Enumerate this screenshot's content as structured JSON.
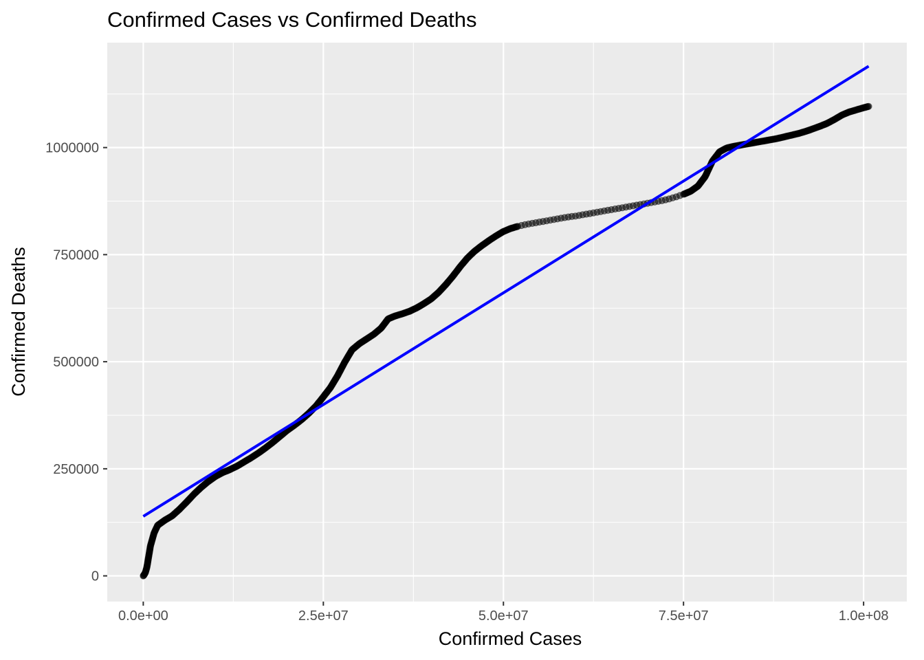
{
  "chart_data": {
    "type": "scatter",
    "title": "Confirmed Cases vs Confirmed Deaths",
    "xlabel": "Confirmed Cases",
    "ylabel": "Confirmed Deaths",
    "xlim": [
      -5000000,
      106000000
    ],
    "ylim": [
      -60000,
      1245000
    ],
    "x_ticks": [
      {
        "value": 0,
        "label": "0.0e+00"
      },
      {
        "value": 25000000,
        "label": "2.5e+07"
      },
      {
        "value": 50000000,
        "label": "5.0e+07"
      },
      {
        "value": 75000000,
        "label": "7.5e+07"
      },
      {
        "value": 100000000,
        "label": "1.0e+08"
      }
    ],
    "y_ticks": [
      {
        "value": 0,
        "label": "0"
      },
      {
        "value": 250000,
        "label": "250000"
      },
      {
        "value": 500000,
        "label": "500000"
      },
      {
        "value": 750000,
        "label": "750000"
      },
      {
        "value": 1000000,
        "label": "1000000"
      }
    ],
    "grid": true,
    "colors": {
      "panel_background": "#ebebeb",
      "grid_line": "#ffffff",
      "points": "#000000",
      "fit_line": "#0000ff"
    },
    "series": [
      {
        "type": "scatter",
        "points": [
          [
            0,
            0
          ],
          [
            100000,
            2000
          ],
          [
            300000,
            8000
          ],
          [
            500000,
            20000
          ],
          [
            700000,
            40000
          ],
          [
            1000000,
            70000
          ],
          [
            1500000,
            100000
          ],
          [
            2000000,
            118000
          ],
          [
            3000000,
            130000
          ],
          [
            4000000,
            140000
          ],
          [
            5000000,
            155000
          ],
          [
            6000000,
            172000
          ],
          [
            7000000,
            190000
          ],
          [
            8000000,
            206000
          ],
          [
            9000000,
            220000
          ],
          [
            10000000,
            232000
          ],
          [
            11000000,
            241000
          ],
          [
            12000000,
            248000
          ],
          [
            13000000,
            256000
          ],
          [
            14000000,
            266000
          ],
          [
            15000000,
            276000
          ],
          [
            16000000,
            287000
          ],
          [
            17000000,
            299000
          ],
          [
            18000000,
            312000
          ],
          [
            19000000,
            326000
          ],
          [
            20000000,
            340000
          ],
          [
            21000000,
            352000
          ],
          [
            22000000,
            365000
          ],
          [
            23000000,
            380000
          ],
          [
            24000000,
            397000
          ],
          [
            25000000,
            418000
          ],
          [
            26000000,
            440000
          ],
          [
            27000000,
            468000
          ],
          [
            28000000,
            500000
          ],
          [
            29000000,
            528000
          ],
          [
            30000000,
            542000
          ],
          [
            31000000,
            553000
          ],
          [
            32000000,
            564000
          ],
          [
            33000000,
            578000
          ],
          [
            34000000,
            600000
          ],
          [
            35000000,
            607000
          ],
          [
            36000000,
            612000
          ],
          [
            37000000,
            618000
          ],
          [
            38000000,
            626000
          ],
          [
            39000000,
            636000
          ],
          [
            40000000,
            647000
          ],
          [
            41000000,
            662000
          ],
          [
            42000000,
            680000
          ],
          [
            43000000,
            700000
          ],
          [
            44000000,
            722000
          ],
          [
            45000000,
            742000
          ],
          [
            46000000,
            758000
          ],
          [
            47000000,
            771000
          ],
          [
            48000000,
            783000
          ],
          [
            49000000,
            794000
          ],
          [
            50000000,
            804000
          ],
          [
            51000000,
            811000
          ],
          [
            52000000,
            816000
          ],
          [
            53000000,
            820000
          ],
          [
            54000000,
            823000
          ],
          [
            55000000,
            826000
          ],
          [
            56000000,
            829000
          ],
          [
            57000000,
            832000
          ],
          [
            58000000,
            835000
          ],
          [
            59000000,
            838000
          ],
          [
            60000000,
            840000
          ],
          [
            61000000,
            843000
          ],
          [
            62000000,
            846000
          ],
          [
            63000000,
            849000
          ],
          [
            64000000,
            852000
          ],
          [
            65000000,
            855000
          ],
          [
            66000000,
            858000
          ],
          [
            67000000,
            861000
          ],
          [
            68000000,
            864000
          ],
          [
            69000000,
            867000
          ],
          [
            70000000,
            870000
          ],
          [
            71000000,
            873000
          ],
          [
            72000000,
            876000
          ],
          [
            73000000,
            880000
          ],
          [
            74000000,
            885000
          ],
          [
            75000000,
            891000
          ],
          [
            76000000,
            898000
          ],
          [
            77000000,
            910000
          ],
          [
            78000000,
            932000
          ],
          [
            79000000,
            968000
          ],
          [
            80000000,
            990000
          ],
          [
            81000000,
            999000
          ],
          [
            82000000,
            1003000
          ],
          [
            83000000,
            1006000
          ],
          [
            84000000,
            1009000
          ],
          [
            85000000,
            1012000
          ],
          [
            86000000,
            1015000
          ],
          [
            87000000,
            1018000
          ],
          [
            88000000,
            1021000
          ],
          [
            89000000,
            1025000
          ],
          [
            90000000,
            1029000
          ],
          [
            91000000,
            1033000
          ],
          [
            92000000,
            1038000
          ],
          [
            93000000,
            1044000
          ],
          [
            94000000,
            1050000
          ],
          [
            95000000,
            1057000
          ],
          [
            96000000,
            1066000
          ],
          [
            97000000,
            1076000
          ],
          [
            98000000,
            1083000
          ],
          [
            99000000,
            1088000
          ],
          [
            100000000,
            1093000
          ],
          [
            100700000,
            1096000
          ]
        ]
      },
      {
        "type": "line",
        "points": [
          [
            0,
            139000
          ],
          [
            100700000,
            1190000
          ]
        ]
      }
    ]
  }
}
